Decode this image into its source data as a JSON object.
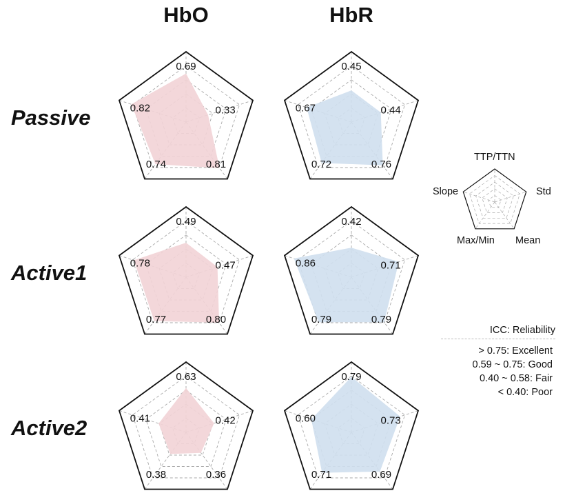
{
  "columns": [
    "HbO",
    "HbR"
  ],
  "rows": [
    "Passive",
    "Active1",
    "Active2"
  ],
  "legend": {
    "axes": [
      "TTP/TTN",
      "Std",
      "Mean",
      "Max/Min",
      "Slope"
    ]
  },
  "icc": {
    "title": "ICC: Reliability",
    "levels": [
      "> 0.75: Excellent",
      "0.59 ~ 0.75: Good",
      "0.40 ~ 0.58: Fair",
      "< 0.40: Poor"
    ]
  },
  "colors": {
    "hbo_fill": "#f2d3d6",
    "hbr_fill": "#cfdfee",
    "frame": "#111111",
    "grid": "#aaaaaa"
  },
  "chart_data": [
    {
      "type": "radar",
      "row": "Passive",
      "column": "HbO",
      "axes": [
        "TTP/TTN",
        "Std",
        "Mean",
        "Max/Min",
        "Slope"
      ],
      "values": [
        0.69,
        0.33,
        0.81,
        0.74,
        0.82
      ],
      "range": [
        0,
        1
      ]
    },
    {
      "type": "radar",
      "row": "Passive",
      "column": "HbR",
      "axes": [
        "TTP/TTN",
        "Std",
        "Mean",
        "Max/Min",
        "Slope"
      ],
      "values": [
        0.45,
        0.44,
        0.76,
        0.72,
        0.67
      ],
      "range": [
        0,
        1
      ]
    },
    {
      "type": "radar",
      "row": "Active1",
      "column": "HbO",
      "axes": [
        "TTP/TTN",
        "Std",
        "Mean",
        "Max/Min",
        "Slope"
      ],
      "values": [
        0.49,
        0.47,
        0.8,
        0.77,
        0.78
      ],
      "range": [
        0,
        1
      ]
    },
    {
      "type": "radar",
      "row": "Active1",
      "column": "HbR",
      "axes": [
        "TTP/TTN",
        "Std",
        "Mean",
        "Max/Min",
        "Slope"
      ],
      "values": [
        0.42,
        0.71,
        0.79,
        0.79,
        0.86
      ],
      "range": [
        0,
        1
      ]
    },
    {
      "type": "radar",
      "row": "Active2",
      "column": "HbO",
      "axes": [
        "TTP/TTN",
        "Std",
        "Mean",
        "Max/Min",
        "Slope"
      ],
      "values": [
        0.63,
        0.42,
        0.36,
        0.38,
        0.41
      ],
      "range": [
        0,
        1
      ]
    },
    {
      "type": "radar",
      "row": "Active2",
      "column": "HbR",
      "axes": [
        "TTP/TTN",
        "Std",
        "Mean",
        "Max/Min",
        "Slope"
      ],
      "values": [
        0.79,
        0.73,
        0.69,
        0.71,
        0.6
      ],
      "range": [
        0,
        1
      ]
    }
  ]
}
